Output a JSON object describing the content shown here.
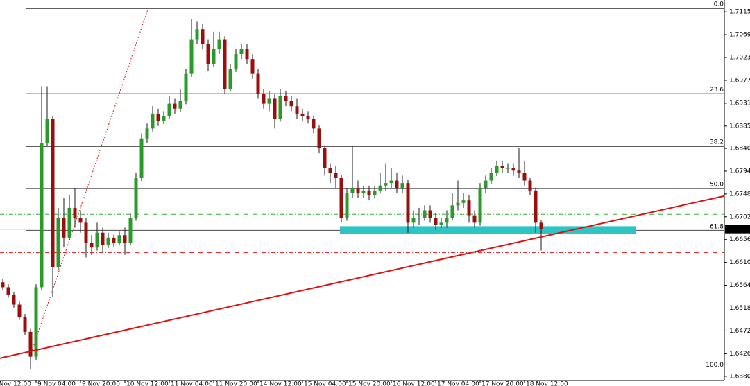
{
  "chart_data": {
    "type": "candlestick",
    "colors": {
      "up": "#2a9a2a",
      "down": "#9a0e0e",
      "wick": "#1a1a1a",
      "zone": "#2ec4c4",
      "trend": "#e01010",
      "fibo": "#000000"
    },
    "xlim": [
      -0.5,
      130
    ],
    "ylim": [
      1.6372,
      1.7139
    ],
    "yticks": [
      {
        "value": 1.7115,
        "label": "1.71150"
      },
      {
        "value": 1.7069,
        "label": "1.70690"
      },
      {
        "value": 1.7023,
        "label": "1.70230"
      },
      {
        "value": 1.6977,
        "label": "1.69770"
      },
      {
        "value": 1.6931,
        "label": "1.69310"
      },
      {
        "value": 1.6885,
        "label": "1.68850"
      },
      {
        "value": 1.684,
        "label": "1.68400"
      },
      {
        "value": 1.6794,
        "label": "1.67940"
      },
      {
        "value": 1.6748,
        "label": "1.67480"
      },
      {
        "value": 1.6702,
        "label": "1.67020"
      },
      {
        "value": 1.6656,
        "label": "1.66560"
      },
      {
        "value": 1.661,
        "label": "1.66100"
      },
      {
        "value": 1.6564,
        "label": "1.65640"
      },
      {
        "value": 1.6518,
        "label": "1.65180"
      },
      {
        "value": 1.6472,
        "label": "1.64720"
      },
      {
        "value": 1.6426,
        "label": "1.64260"
      },
      {
        "value": 1.63805,
        "label": "1.63805"
      }
    ],
    "xticks": [
      {
        "value": -2,
        "label": "8 Nov 12:00"
      },
      {
        "value": 6,
        "label": "9 Nov 04:00"
      },
      {
        "value": 14,
        "label": "9 Nov 20:00"
      },
      {
        "value": 22,
        "label": "10 Nov 12:00"
      },
      {
        "value": 30,
        "label": "11 Nov 04:00"
      },
      {
        "value": 38,
        "label": "11 Nov 20:00"
      },
      {
        "value": 46,
        "label": "14 Nov 12:00"
      },
      {
        "value": 54,
        "label": "15 Nov 04:00"
      },
      {
        "value": 62,
        "label": "15 Nov 20:00"
      },
      {
        "value": 70,
        "label": "16 Nov 12:00"
      },
      {
        "value": 78,
        "label": "17 Nov 04:00"
      },
      {
        "value": 86,
        "label": "17 Nov 20:00"
      },
      {
        "value": 94,
        "label": "18 Nov 12:00"
      }
    ],
    "ohlc": [
      [
        1.657,
        1.6576,
        1.6554,
        1.656
      ],
      [
        1.656,
        1.6566,
        1.6539,
        1.6545
      ],
      [
        1.6545,
        1.6551,
        1.6519,
        1.6525
      ],
      [
        1.6525,
        1.6531,
        1.6494,
        1.65
      ],
      [
        1.65,
        1.6506,
        1.6464,
        1.647
      ],
      [
        1.647,
        1.6476,
        1.6395,
        1.642
      ],
      [
        1.642,
        1.6566,
        1.6414,
        1.656
      ],
      [
        1.656,
        1.6965,
        1.6554,
        1.685
      ],
      [
        1.685,
        1.6965,
        1.6844,
        1.69
      ],
      [
        1.69,
        1.6906,
        1.654,
        1.66
      ],
      [
        1.66,
        1.672,
        1.6594,
        1.67
      ],
      [
        1.67,
        1.674,
        1.664,
        1.666
      ],
      [
        1.666,
        1.6745,
        1.6654,
        1.672
      ],
      [
        1.672,
        1.676,
        1.668,
        1.67
      ],
      [
        1.67,
        1.6715,
        1.667,
        1.669
      ],
      [
        1.669,
        1.67,
        1.662,
        1.665
      ],
      [
        1.665,
        1.6665,
        1.6625,
        1.664
      ],
      [
        1.664,
        1.669,
        1.6634,
        1.667
      ],
      [
        1.667,
        1.668,
        1.663,
        1.6645
      ],
      [
        1.6645,
        1.667,
        1.6639,
        1.666
      ],
      [
        1.666,
        1.6666,
        1.664,
        1.665
      ],
      [
        1.665,
        1.6672,
        1.6644,
        1.6665
      ],
      [
        1.6665,
        1.668,
        1.6625,
        1.665
      ],
      [
        1.665,
        1.671,
        1.6644,
        1.67
      ],
      [
        1.67,
        1.679,
        1.6694,
        1.678
      ],
      [
        1.678,
        1.687,
        1.6774,
        1.686
      ],
      [
        1.686,
        1.689,
        1.685,
        1.688
      ],
      [
        1.688,
        1.6925,
        1.6874,
        1.691
      ],
      [
        1.691,
        1.692,
        1.6885,
        1.6895
      ],
      [
        1.6895,
        1.6915,
        1.6889,
        1.6905
      ],
      [
        1.6905,
        1.6945,
        1.6899,
        1.693
      ],
      [
        1.693,
        1.694,
        1.691,
        1.692
      ],
      [
        1.692,
        1.696,
        1.6914,
        1.6935
      ],
      [
        1.6935,
        1.7,
        1.6929,
        1.699
      ],
      [
        1.699,
        1.71,
        1.6984,
        1.706
      ],
      [
        1.706,
        1.7095,
        1.705,
        1.708
      ],
      [
        1.708,
        1.709,
        1.704,
        1.705
      ],
      [
        1.705,
        1.706,
        1.6995,
        1.701
      ],
      [
        1.701,
        1.7075,
        1.7004,
        1.704
      ],
      [
        1.704,
        1.7075,
        1.703,
        1.706
      ],
      [
        1.706,
        1.7066,
        1.695,
        1.696
      ],
      [
        1.696,
        1.701,
        1.6954,
        1.7
      ],
      [
        1.7,
        1.704,
        1.6994,
        1.703
      ],
      [
        1.703,
        1.705,
        1.702,
        1.704
      ],
      [
        1.704,
        1.705,
        1.701,
        1.702
      ],
      [
        1.702,
        1.703,
        1.698,
        1.699
      ],
      [
        1.699,
        1.7,
        1.694,
        1.695
      ],
      [
        1.695,
        1.696,
        1.692,
        1.693
      ],
      [
        1.693,
        1.6955,
        1.6915,
        1.694
      ],
      [
        1.694,
        1.695,
        1.688,
        1.69
      ],
      [
        1.69,
        1.696,
        1.6894,
        1.6945
      ],
      [
        1.6945,
        1.6955,
        1.6925,
        1.6935
      ],
      [
        1.6935,
        1.6945,
        1.6915,
        1.6925
      ],
      [
        1.6925,
        1.694,
        1.69,
        1.691
      ],
      [
        1.691,
        1.692,
        1.6895,
        1.6905
      ],
      [
        1.6905,
        1.6915,
        1.689,
        1.69
      ],
      [
        1.69,
        1.6906,
        1.687,
        1.688
      ],
      [
        1.688,
        1.6886,
        1.683,
        1.684
      ],
      [
        1.684,
        1.6846,
        1.6785,
        1.68
      ],
      [
        1.68,
        1.681,
        1.677,
        1.679
      ],
      [
        1.679,
        1.6805,
        1.676,
        1.678
      ],
      [
        1.678,
        1.6786,
        1.669,
        1.67
      ],
      [
        1.67,
        1.676,
        1.6694,
        1.675
      ],
      [
        1.675,
        1.6845,
        1.674,
        1.676
      ],
      [
        1.676,
        1.6775,
        1.674,
        1.675
      ],
      [
        1.675,
        1.6765,
        1.674,
        1.6755
      ],
      [
        1.6755,
        1.6765,
        1.6735,
        1.6745
      ],
      [
        1.6745,
        1.6765,
        1.6739,
        1.6755
      ],
      [
        1.6755,
        1.679,
        1.6749,
        1.6765
      ],
      [
        1.6765,
        1.681,
        1.6755,
        1.677
      ],
      [
        1.677,
        1.68,
        1.676,
        1.6775
      ],
      [
        1.6775,
        1.679,
        1.675,
        1.676
      ],
      [
        1.676,
        1.6785,
        1.675,
        1.677
      ],
      [
        1.677,
        1.6776,
        1.667,
        1.669
      ],
      [
        1.669,
        1.6715,
        1.668,
        1.67
      ],
      [
        1.67,
        1.672,
        1.6685,
        1.67
      ],
      [
        1.67,
        1.6725,
        1.6694,
        1.6715
      ],
      [
        1.6715,
        1.6725,
        1.669,
        1.67
      ],
      [
        1.67,
        1.671,
        1.6675,
        1.6685
      ],
      [
        1.6685,
        1.67,
        1.6679,
        1.669
      ],
      [
        1.669,
        1.6715,
        1.668,
        1.67
      ],
      [
        1.67,
        1.675,
        1.6694,
        1.6725
      ],
      [
        1.6725,
        1.6775,
        1.6715,
        1.673
      ],
      [
        1.673,
        1.675,
        1.672,
        1.6735
      ],
      [
        1.6735,
        1.6745,
        1.669,
        1.6705
      ],
      [
        1.6705,
        1.6715,
        1.668,
        1.669
      ],
      [
        1.669,
        1.677,
        1.6684,
        1.676
      ],
      [
        1.676,
        1.6785,
        1.675,
        1.6775
      ],
      [
        1.6775,
        1.68,
        1.6769,
        1.679
      ],
      [
        1.679,
        1.6815,
        1.6784,
        1.6805
      ],
      [
        1.6805,
        1.6815,
        1.679,
        1.68
      ],
      [
        1.68,
        1.681,
        1.679,
        1.68
      ],
      [
        1.68,
        1.681,
        1.6785,
        1.6795
      ],
      [
        1.6795,
        1.684,
        1.678,
        1.679
      ],
      [
        1.679,
        1.6815,
        1.6765,
        1.6775
      ],
      [
        1.6775,
        1.678,
        1.6745,
        1.6755
      ],
      [
        1.6755,
        1.6761,
        1.667,
        1.669
      ],
      [
        1.669,
        1.6695,
        1.6634,
        1.6677
      ]
    ],
    "fibo": {
      "levels": [
        {
          "label": "0.0",
          "price": 1.7122
        },
        {
          "label": "23.6",
          "price": 1.695
        },
        {
          "label": "38.2",
          "price": 1.6844
        },
        {
          "label": "50.0",
          "price": 1.6759
        },
        {
          "label": "61.8",
          "price": 1.6674
        },
        {
          "label": "100.0",
          "price": 1.6395
        }
      ],
      "anchor": {
        "x": [
          5.1,
          26.1
        ],
        "y": [
          1.6427,
          1.7119
        ]
      }
    },
    "trendline": {
      "x": [
        -0.5,
        130
      ],
      "y": [
        1.6417,
        1.6744
      ]
    },
    "zone": {
      "x": [
        60.75,
        114.1
      ],
      "y": [
        1.6683,
        1.6667
      ]
    },
    "hlines": [
      {
        "price": 1.6707,
        "color": "#30b030"
      },
      {
        "price": 1.663,
        "color": "#e01010"
      }
    ],
    "current_price": {
      "value": 1.6677,
      "label": "1.66770"
    }
  }
}
